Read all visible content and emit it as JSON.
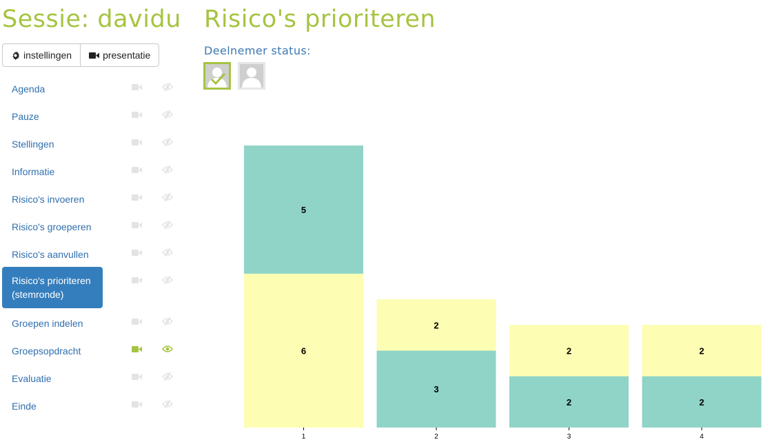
{
  "session": {
    "title": "Sessie: davidu"
  },
  "toolbar": {
    "settings_label": "instellingen",
    "presentation_label": "presentatie"
  },
  "menu": [
    {
      "label": "Agenda",
      "active": false,
      "visible": false
    },
    {
      "label": "Pauze",
      "active": false,
      "visible": false
    },
    {
      "label": "Stellingen",
      "active": false,
      "visible": false
    },
    {
      "label": "Informatie",
      "active": false,
      "visible": false
    },
    {
      "label": "Risico's invoeren",
      "active": false,
      "visible": false
    },
    {
      "label": "Risico's groeperen",
      "active": false,
      "visible": false
    },
    {
      "label": "Risico's aanvullen",
      "active": false,
      "visible": false
    },
    {
      "label": "Risico's prioriteren (stemronde)",
      "active": true,
      "visible": false
    },
    {
      "label": "Groepen indelen",
      "active": false,
      "visible": false
    },
    {
      "label": "Groepsopdracht",
      "active": false,
      "visible": true
    },
    {
      "label": "Evaluatie",
      "active": false,
      "visible": false
    },
    {
      "label": "Einde",
      "active": false,
      "visible": false
    }
  ],
  "main": {
    "title": "Risico's prioriteren",
    "status_label": "Deelnemer status:"
  },
  "participants": [
    {
      "status": "done"
    },
    {
      "status": "waiting"
    }
  ],
  "colors": {
    "accent": "#a6c441",
    "link": "#2f6fae",
    "active_bg": "#357ebd",
    "teal": "#8fd4c7",
    "yellow": "#fdfdb3",
    "icon_muted": "#e3e3e3"
  },
  "chart_data": {
    "type": "bar",
    "stacked": true,
    "categories": [
      "1",
      "2",
      "3",
      "4"
    ],
    "series": [
      {
        "color": "#fdfdb3",
        "values": [
          6,
          2,
          2,
          2
        ]
      },
      {
        "color": "#8fd4c7",
        "values": [
          5,
          3,
          2,
          2
        ]
      }
    ],
    "stack_order": [
      [
        "#fdfdb3",
        "#8fd4c7"
      ],
      [
        "#8fd4c7",
        "#fdfdb3"
      ],
      [
        "#8fd4c7",
        "#fdfdb3"
      ],
      [
        "#8fd4c7",
        "#fdfdb3"
      ]
    ],
    "grid": false,
    "legend": "none"
  }
}
